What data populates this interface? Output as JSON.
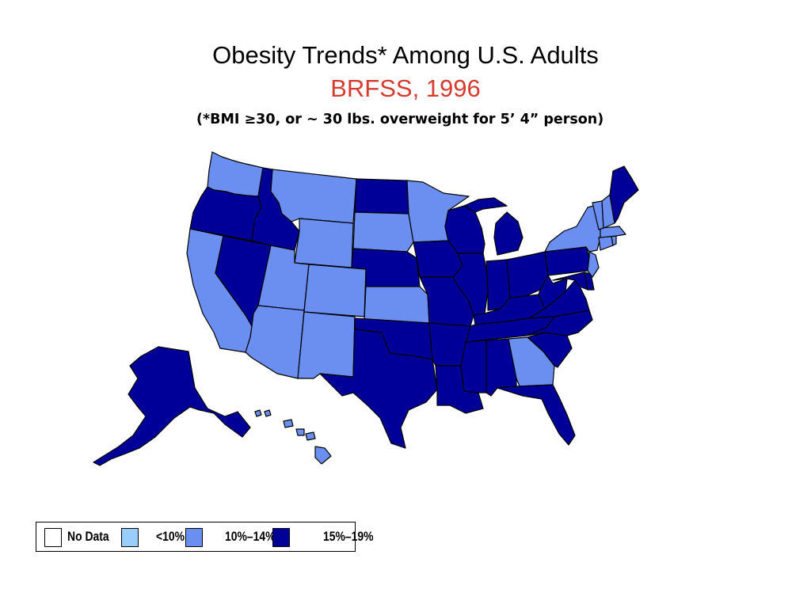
{
  "title": "Obesity Trends* Among U.S. Adults",
  "subtitle": "BRFSS, 1996",
  "note": "(*BMI ≥30, or ~ 30 lbs. overweight for 5’ 4” person)",
  "colors": {
    "title": "#000000",
    "subtitle": "#d63b2f",
    "no_data": "#ffffff",
    "lt10": "#99ccff",
    "10_14": "#6a8ff0",
    "15_19": "#000099"
  },
  "legend": [
    {
      "key": "no_data",
      "label": "No Data"
    },
    {
      "key": "lt10",
      "label": "<10%"
    },
    {
      "key": "10_14",
      "label": "10%–14%"
    },
    {
      "key": "15_19",
      "label": "15%–19%"
    }
  ],
  "states": {
    "WA": "10_14",
    "OR": "15_19",
    "CA": "10_14",
    "NV": "15_19",
    "ID": "15_19",
    "MT": "10_14",
    "WY": "10_14",
    "UT": "10_14",
    "AZ": "10_14",
    "CO": "10_14",
    "NM": "10_14",
    "ND": "15_19",
    "SD": "10_14",
    "NE": "15_19",
    "KS": "10_14",
    "OK": "15_19",
    "TX": "15_19",
    "MN": "10_14",
    "IA": "15_19",
    "MO": "15_19",
    "AR": "15_19",
    "LA": "15_19",
    "WI": "15_19",
    "IL": "15_19",
    "MI": "15_19",
    "IN": "15_19",
    "OH": "15_19",
    "KY": "15_19",
    "TN": "15_19",
    "MS": "15_19",
    "AL": "15_19",
    "GA": "10_14",
    "FL": "15_19",
    "SC": "15_19",
    "NC": "15_19",
    "VA": "15_19",
    "WV": "15_19",
    "PA": "15_19",
    "NY": "10_14",
    "NJ": "10_14",
    "DE": "15_19",
    "MD": "15_19",
    "CT": "10_14",
    "RI": "10_14",
    "MA": "10_14",
    "VT": "10_14",
    "NH": "10_14",
    "ME": "15_19",
    "AK": "15_19",
    "HI": "10_14"
  }
}
